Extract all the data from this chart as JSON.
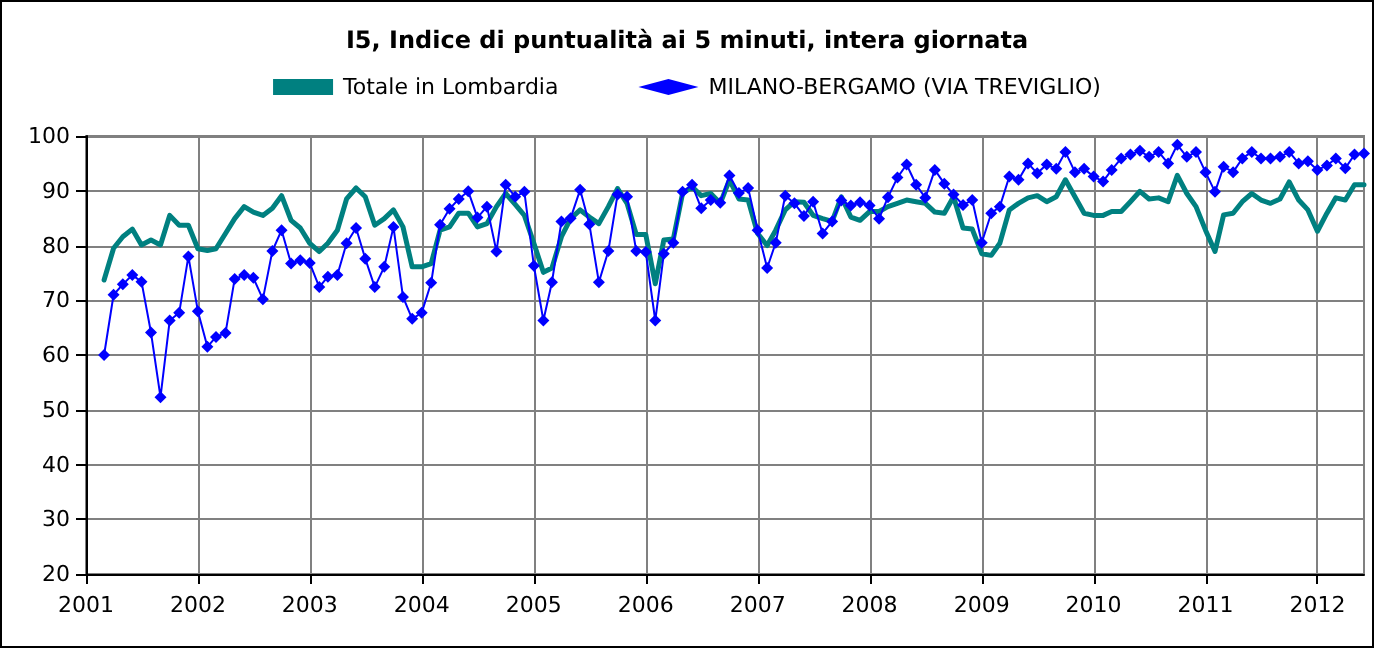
{
  "chart_data": {
    "type": "line",
    "title": "I5, Indice di puntualità ai 5 minuti, intera giornata",
    "x": [
      "2001-03",
      "2001-04",
      "2001-05",
      "2001-06",
      "2001-07",
      "2001-08",
      "2001-09",
      "2001-10",
      "2001-11",
      "2001-12",
      "2002-01",
      "2002-02",
      "2002-03",
      "2002-04",
      "2002-05",
      "2002-06",
      "2002-07",
      "2002-08",
      "2002-09",
      "2002-10",
      "2002-11",
      "2002-12",
      "2003-01",
      "2003-02",
      "2003-03",
      "2003-04",
      "2003-05",
      "2003-06",
      "2003-07",
      "2003-08",
      "2003-09",
      "2003-10",
      "2003-11",
      "2003-12",
      "2004-01",
      "2004-02",
      "2004-03",
      "2004-04",
      "2004-05",
      "2004-06",
      "2004-07",
      "2004-08",
      "2004-09",
      "2004-10",
      "2004-11",
      "2004-12",
      "2005-01",
      "2005-02",
      "2005-03",
      "2005-04",
      "2005-05",
      "2005-06",
      "2005-07",
      "2005-08",
      "2005-09",
      "2005-10",
      "2005-11",
      "2005-12",
      "2006-01",
      "2006-02",
      "2006-03",
      "2006-04",
      "2006-05",
      "2006-06",
      "2006-07",
      "2006-08",
      "2006-09",
      "2006-10",
      "2006-11",
      "2006-12",
      "2007-01",
      "2007-02",
      "2007-03",
      "2007-04",
      "2007-05",
      "2007-06",
      "2007-07",
      "2007-08",
      "2007-09",
      "2007-10",
      "2007-11",
      "2007-12",
      "2008-01",
      "2008-02",
      "2008-03",
      "2008-04",
      "2008-05",
      "2008-06",
      "2008-07",
      "2008-08",
      "2008-09",
      "2008-10",
      "2008-11",
      "2008-12",
      "2009-01",
      "2009-02",
      "2009-03",
      "2009-04",
      "2009-05",
      "2009-06",
      "2009-07",
      "2009-08",
      "2009-09",
      "2009-10",
      "2009-11",
      "2009-12",
      "2010-01",
      "2010-02",
      "2010-03",
      "2010-04",
      "2010-05",
      "2010-06",
      "2010-07",
      "2010-08",
      "2010-09",
      "2010-10",
      "2010-11",
      "2010-12",
      "2011-01",
      "2011-02",
      "2011-03",
      "2011-04",
      "2011-05",
      "2011-06",
      "2011-07",
      "2011-08",
      "2011-09",
      "2011-10",
      "2011-11",
      "2011-12",
      "2012-01",
      "2012-02",
      "2012-03",
      "2012-04",
      "2012-05",
      "2012-06"
    ],
    "series": [
      {
        "name": "Totale in Lombardia",
        "color": "#008080",
        "marker": "none",
        "values": [
          73.7,
          79.5,
          81.6,
          83.0,
          80.1,
          81.0,
          80.1,
          85.5,
          83.7,
          83.7,
          79.4,
          79.1,
          79.4,
          82.2,
          84.9,
          87.1,
          86.1,
          85.5,
          86.8,
          89.1,
          84.6,
          83.2,
          80.4,
          78.9,
          80.4,
          82.8,
          88.5,
          90.5,
          88.9,
          83.7,
          84.9,
          86.5,
          83.4,
          76.1,
          76.1,
          76.7,
          82.8,
          83.4,
          85.9,
          85.9,
          83.4,
          84.0,
          87.1,
          89.5,
          87.5,
          85.5,
          80.4,
          75.1,
          75.9,
          81.6,
          84.9,
          86.5,
          85.2,
          84.0,
          87.1,
          90.4,
          87.7,
          82.0,
          82.0,
          73.0,
          81.0,
          81.2,
          89.5,
          90.7,
          89.1,
          89.5,
          87.7,
          92.0,
          88.5,
          88.3,
          82.2,
          80.0,
          82.8,
          86.5,
          88.0,
          87.9,
          85.5,
          84.9,
          84.4,
          88.9,
          85.2,
          84.6,
          86.2,
          86.2,
          87.1,
          87.7,
          88.3,
          88.0,
          87.7,
          86.1,
          85.9,
          88.9,
          83.2,
          83.0,
          78.5,
          78.2,
          80.4,
          86.5,
          87.7,
          88.7,
          89.1,
          88.0,
          88.9,
          92.0,
          88.9,
          85.9,
          85.5,
          85.5,
          86.2,
          86.2,
          88.0,
          89.9,
          88.5,
          88.7,
          88.0,
          92.8,
          89.5,
          87.1,
          82.8,
          78.9,
          85.6,
          85.9,
          88.0,
          89.5,
          88.3,
          87.7,
          88.5,
          91.6,
          88.3,
          86.5,
          82.6,
          85.9,
          88.7,
          88.3,
          91.1,
          91.1
        ]
      },
      {
        "name": "MILANO-BERGAMO (VIA TREVIGLIO)",
        "color": "#0000ff",
        "marker": "diamond",
        "values": [
          60.0,
          71.0,
          72.9,
          74.6,
          73.4,
          64.1,
          52.3,
          66.3,
          67.7,
          78.0,
          68.0,
          61.5,
          63.3,
          64.0,
          73.9,
          74.6,
          74.1,
          70.2,
          79.0,
          82.8,
          76.7,
          77.3,
          76.8,
          72.4,
          74.3,
          74.6,
          80.4,
          83.2,
          77.6,
          72.4,
          76.1,
          83.4,
          70.6,
          66.6,
          67.7,
          73.2,
          83.8,
          86.7,
          88.5,
          89.9,
          85.1,
          87.1,
          78.9,
          91.1,
          88.9,
          89.8,
          76.3,
          66.3,
          73.3,
          84.4,
          85.0,
          90.2,
          83.9,
          73.3,
          79.0,
          89.3,
          88.9,
          79.0,
          78.8,
          66.3,
          78.5,
          80.5,
          89.8,
          91.1,
          86.8,
          88.3,
          87.8,
          92.8,
          89.6,
          90.5,
          82.8,
          75.9,
          80.5,
          89.1,
          87.7,
          85.4,
          88.0,
          82.2,
          84.4,
          88.2,
          87.3,
          87.9,
          87.3,
          84.9,
          88.8,
          92.4,
          94.8,
          91.1,
          88.7,
          93.8,
          91.3,
          89.3,
          87.4,
          88.3,
          80.5,
          85.9,
          87.1,
          92.6,
          92.0,
          95.0,
          93.2,
          94.8,
          94.0,
          97.1,
          93.4,
          94.0,
          92.6,
          91.7,
          93.8,
          95.9,
          96.6,
          97.3,
          96.2,
          97.1,
          95.0,
          98.4,
          96.2,
          97.1,
          93.4,
          89.8,
          94.4,
          93.4,
          95.9,
          97.1,
          95.9,
          95.9,
          96.2,
          97.1,
          95.0,
          95.4,
          93.8,
          94.6,
          95.9,
          94.1,
          96.6,
          96.8
        ]
      }
    ],
    "xlim": [
      "2001-01",
      "2012-06"
    ],
    "xticks": [
      {
        "value": "2001-01",
        "label": "2001"
      },
      {
        "value": "2002-01",
        "label": "2002"
      },
      {
        "value": "2003-01",
        "label": "2003"
      },
      {
        "value": "2004-01",
        "label": "2004"
      },
      {
        "value": "2005-01",
        "label": "2005"
      },
      {
        "value": "2006-01",
        "label": "2006"
      },
      {
        "value": "2007-01",
        "label": "2007"
      },
      {
        "value": "2008-01",
        "label": "2008"
      },
      {
        "value": "2009-01",
        "label": "2009"
      },
      {
        "value": "2010-01",
        "label": "2010"
      },
      {
        "value": "2011-01",
        "label": "2011"
      },
      {
        "value": "2012-01",
        "label": "2012"
      }
    ],
    "ylim": [
      20,
      100
    ],
    "yticks": [
      20,
      30,
      40,
      50,
      60,
      70,
      80,
      90,
      100
    ],
    "grid": true,
    "legend": "top",
    "line_style": "solid"
  }
}
